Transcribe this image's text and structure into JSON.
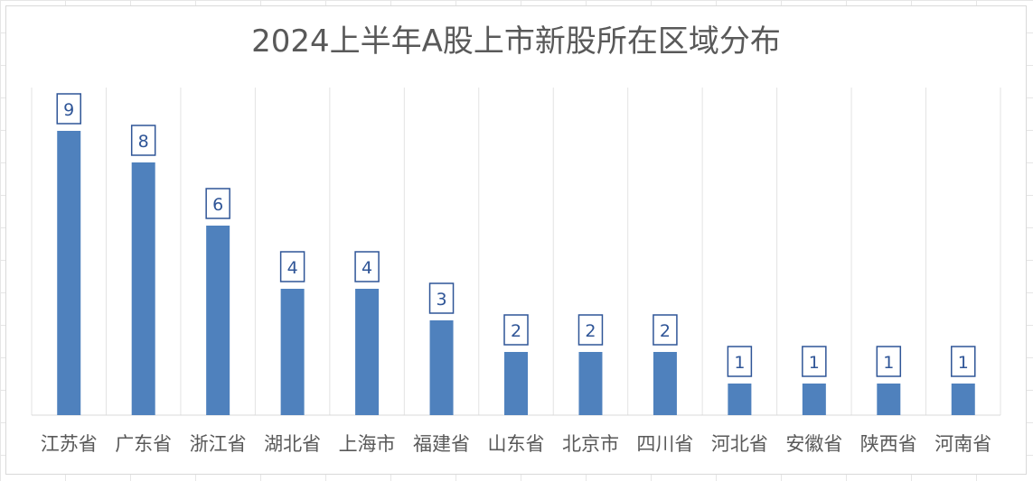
{
  "chart_data": {
    "type": "bar",
    "title": "2024上半年A股上市新股所在区域分布",
    "xlabel": "",
    "ylabel": "",
    "categories": [
      "江苏省",
      "广东省",
      "浙江省",
      "湖北省",
      "上海市",
      "福建省",
      "山东省",
      "北京市",
      "四川省",
      "河北省",
      "安徽省",
      "陕西省",
      "河南省"
    ],
    "values": [
      9,
      8,
      6,
      4,
      4,
      3,
      2,
      2,
      2,
      1,
      1,
      1,
      1
    ],
    "ylim": [
      0,
      10
    ],
    "grid": "vertical",
    "legend": "none",
    "data_labels": true,
    "colors": {
      "bar": "#4f81bd",
      "label_border": "#2f5597",
      "grid": "#e3e3e3",
      "text": "#595959"
    }
  }
}
